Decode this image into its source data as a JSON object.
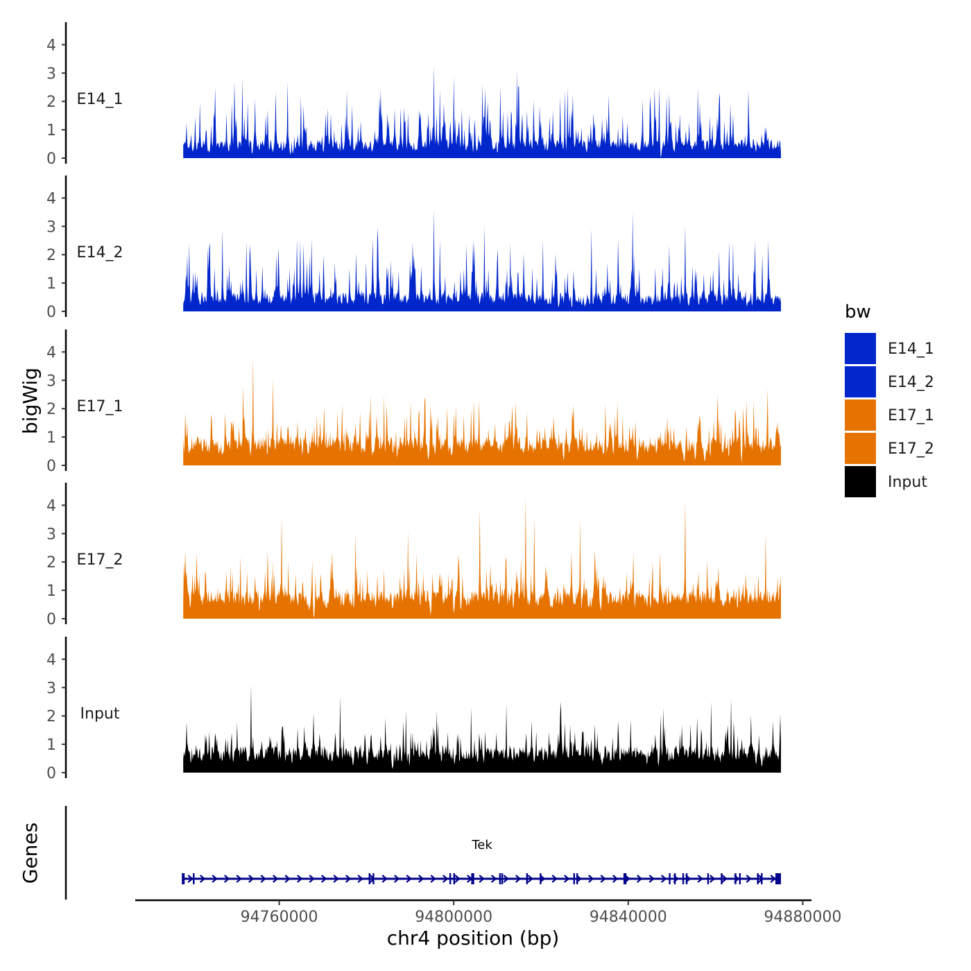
{
  "chart_data": {
    "type": "area",
    "title": "",
    "xlabel": "chr4 position (bp)",
    "ylabel": "bigWig",
    "genes_label": "Genes",
    "xlim": [
      94727000,
      94882000
    ],
    "data_range": [
      94738000,
      94875000
    ],
    "ylim": [
      0,
      4.5
    ],
    "yticks": [
      "0",
      "1",
      "2",
      "3",
      "4"
    ],
    "xticks": [
      94760000,
      94800000,
      94840000,
      94880000
    ],
    "xtick_labels": [
      "94760000",
      "94800000",
      "94840000",
      "94880000"
    ],
    "legend": {
      "title": "bw",
      "entries": [
        {
          "label": "E14_1",
          "color": "#0026cc"
        },
        {
          "label": "E14_2",
          "color": "#0026cc"
        },
        {
          "label": "E17_1",
          "color": "#e67300"
        },
        {
          "label": "E17_2",
          "color": "#e67300"
        },
        {
          "label": "Input",
          "color": "#000000"
        }
      ]
    },
    "series": [
      {
        "name": "E14_1",
        "label": "E14_1",
        "color": "#0026cc",
        "base": 0.5,
        "amp": 1.6,
        "seed": 11,
        "peaks": [
          [
            94749800,
            2.7
          ],
          [
            94751500,
            2.8
          ],
          [
            94762000,
            2.7
          ],
          [
            94775500,
            2.4
          ],
          [
            94800000,
            2.9
          ],
          [
            94795500,
            3.25
          ],
          [
            94806500,
            2.6
          ],
          [
            94814500,
            3.1
          ],
          [
            94815000,
            2.5
          ],
          [
            94825500,
            2.4
          ],
          [
            94845000,
            2.2
          ],
          [
            94856000,
            2.5
          ],
          [
            94861000,
            2.3
          ],
          [
            94867500,
            2.4
          ]
        ]
      },
      {
        "name": "E14_2",
        "label": "E14_2",
        "color": "#0026cc",
        "base": 0.5,
        "amp": 1.6,
        "seed": 23,
        "peaks": [
          [
            94747000,
            2.9
          ],
          [
            94782500,
            2.95
          ],
          [
            94795500,
            3.6
          ],
          [
            94807000,
            3.0
          ],
          [
            94813000,
            2.4
          ],
          [
            94820500,
            2.5
          ],
          [
            94831500,
            2.9
          ],
          [
            94841000,
            3.5
          ],
          [
            94853000,
            3.0
          ],
          [
            94864000,
            2.4
          ]
        ]
      },
      {
        "name": "E17_1",
        "label": "E17_1",
        "color": "#e67300",
        "base": 0.75,
        "amp": 1.2,
        "seed": 37,
        "peaks": [
          [
            94751700,
            2.8
          ],
          [
            94754000,
            3.8
          ],
          [
            94758500,
            3.1
          ],
          [
            94781000,
            2.5
          ],
          [
            94784000,
            2.5
          ],
          [
            94793500,
            2.4
          ],
          [
            94804000,
            2.0
          ],
          [
            94860500,
            2.5
          ],
          [
            94867000,
            2.3
          ],
          [
            94872000,
            2.7
          ]
        ]
      },
      {
        "name": "E17_2",
        "label": "E17_2",
        "color": "#e67300",
        "base": 0.75,
        "amp": 1.3,
        "seed": 53,
        "peaks": [
          [
            94758500,
            2.0
          ],
          [
            94760500,
            3.6
          ],
          [
            94777500,
            3.0
          ],
          [
            94789500,
            3.1
          ],
          [
            94806000,
            3.9
          ],
          [
            94816500,
            4.3
          ],
          [
            94818500,
            3.6
          ],
          [
            94829000,
            3.5
          ],
          [
            94853000,
            4.2
          ],
          [
            94871500,
            3.0
          ]
        ]
      },
      {
        "name": "Input",
        "label": "Input",
        "color": "#000000",
        "base": 0.7,
        "amp": 1.1,
        "seed": 71,
        "peaks": [
          [
            94753500,
            3.1
          ],
          [
            94774000,
            2.7
          ],
          [
            94789000,
            2.2
          ],
          [
            94796000,
            2.2
          ],
          [
            94804000,
            2.3
          ],
          [
            94812000,
            2.4
          ],
          [
            94824500,
            2.5
          ],
          [
            94848000,
            2.3
          ],
          [
            94859000,
            2.5
          ],
          [
            94863500,
            2.6
          ]
        ]
      }
    ],
    "gene": {
      "name": "Tek",
      "color": "#00008b",
      "start": 94738000,
      "end": 94875000,
      "strand": "+",
      "exons": [
        94738100,
        94740400,
        94780700,
        94781600,
        94799200,
        94800100,
        94804200,
        94804500,
        94810600,
        94811100,
        94816800,
        94819900,
        94827600,
        94828300,
        94839100,
        94839400,
        94849500,
        94850700,
        94852600,
        94853400,
        94858300,
        94861400,
        94864600,
        94865600,
        94869700,
        94870600
      ]
    }
  }
}
